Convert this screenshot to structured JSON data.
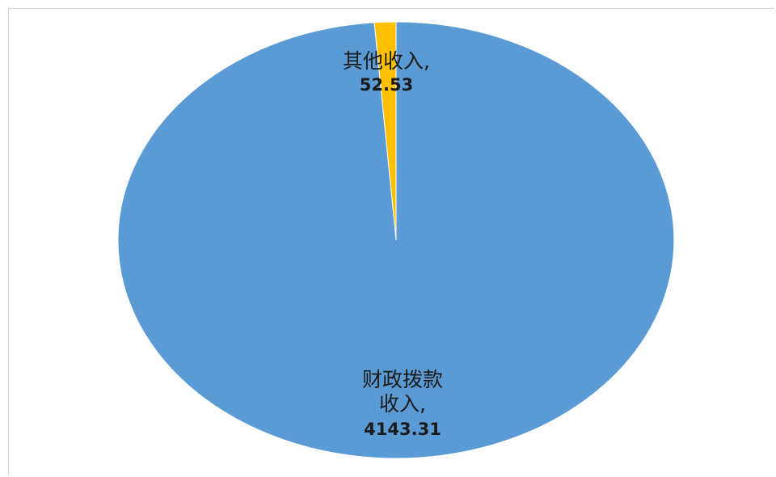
{
  "chart_data": {
    "type": "pie",
    "title": "",
    "slices": [
      {
        "name_lines": [
          "其他收入,"
        ],
        "value": 52.53,
        "value_label": "52.53",
        "color": "#ffc000"
      },
      {
        "name_lines": [
          "财政拨款",
          "收入,"
        ],
        "value": 4143.31,
        "value_label": "4143.31",
        "color": "#5b9bd5"
      }
    ],
    "legend": "none",
    "data_labels": "inside"
  }
}
